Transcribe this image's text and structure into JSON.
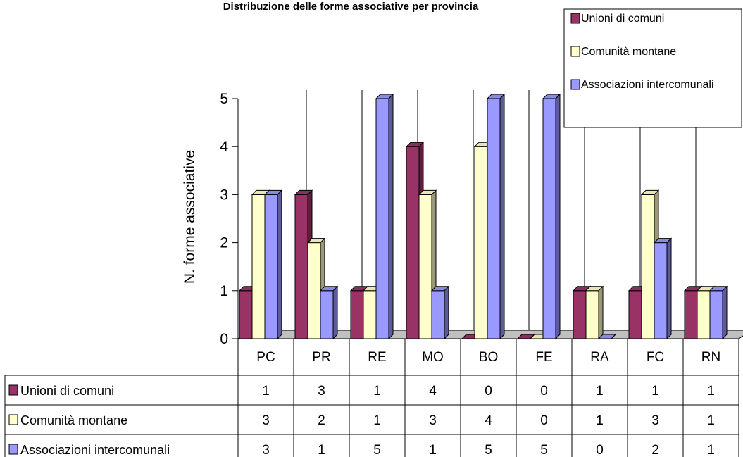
{
  "chart_data": {
    "type": "bar",
    "title": "Distribuzione delle forme associative per provincia",
    "ylabel": "N. forme associative",
    "ylim": [
      0,
      5
    ],
    "yticks": [
      0,
      1,
      2,
      3,
      4,
      5
    ],
    "categories": [
      "PC",
      "PR",
      "RE",
      "MO",
      "BO",
      "FE",
      "RA",
      "FC",
      "RN"
    ],
    "series": [
      {
        "name": "Unioni di comuni",
        "color": "#993366",
        "values": [
          1,
          3,
          1,
          4,
          0,
          0,
          1,
          1,
          1
        ]
      },
      {
        "name": "Comunità montane",
        "color": "#ffffcc",
        "values": [
          3,
          2,
          1,
          3,
          4,
          0,
          1,
          3,
          1
        ]
      },
      {
        "name": "Associazioni intercomunali",
        "color": "#9999ff",
        "values": [
          3,
          1,
          5,
          1,
          5,
          5,
          0,
          2,
          1
        ]
      }
    ],
    "grid": "vertical",
    "legend": "top-right",
    "data_table": true
  }
}
